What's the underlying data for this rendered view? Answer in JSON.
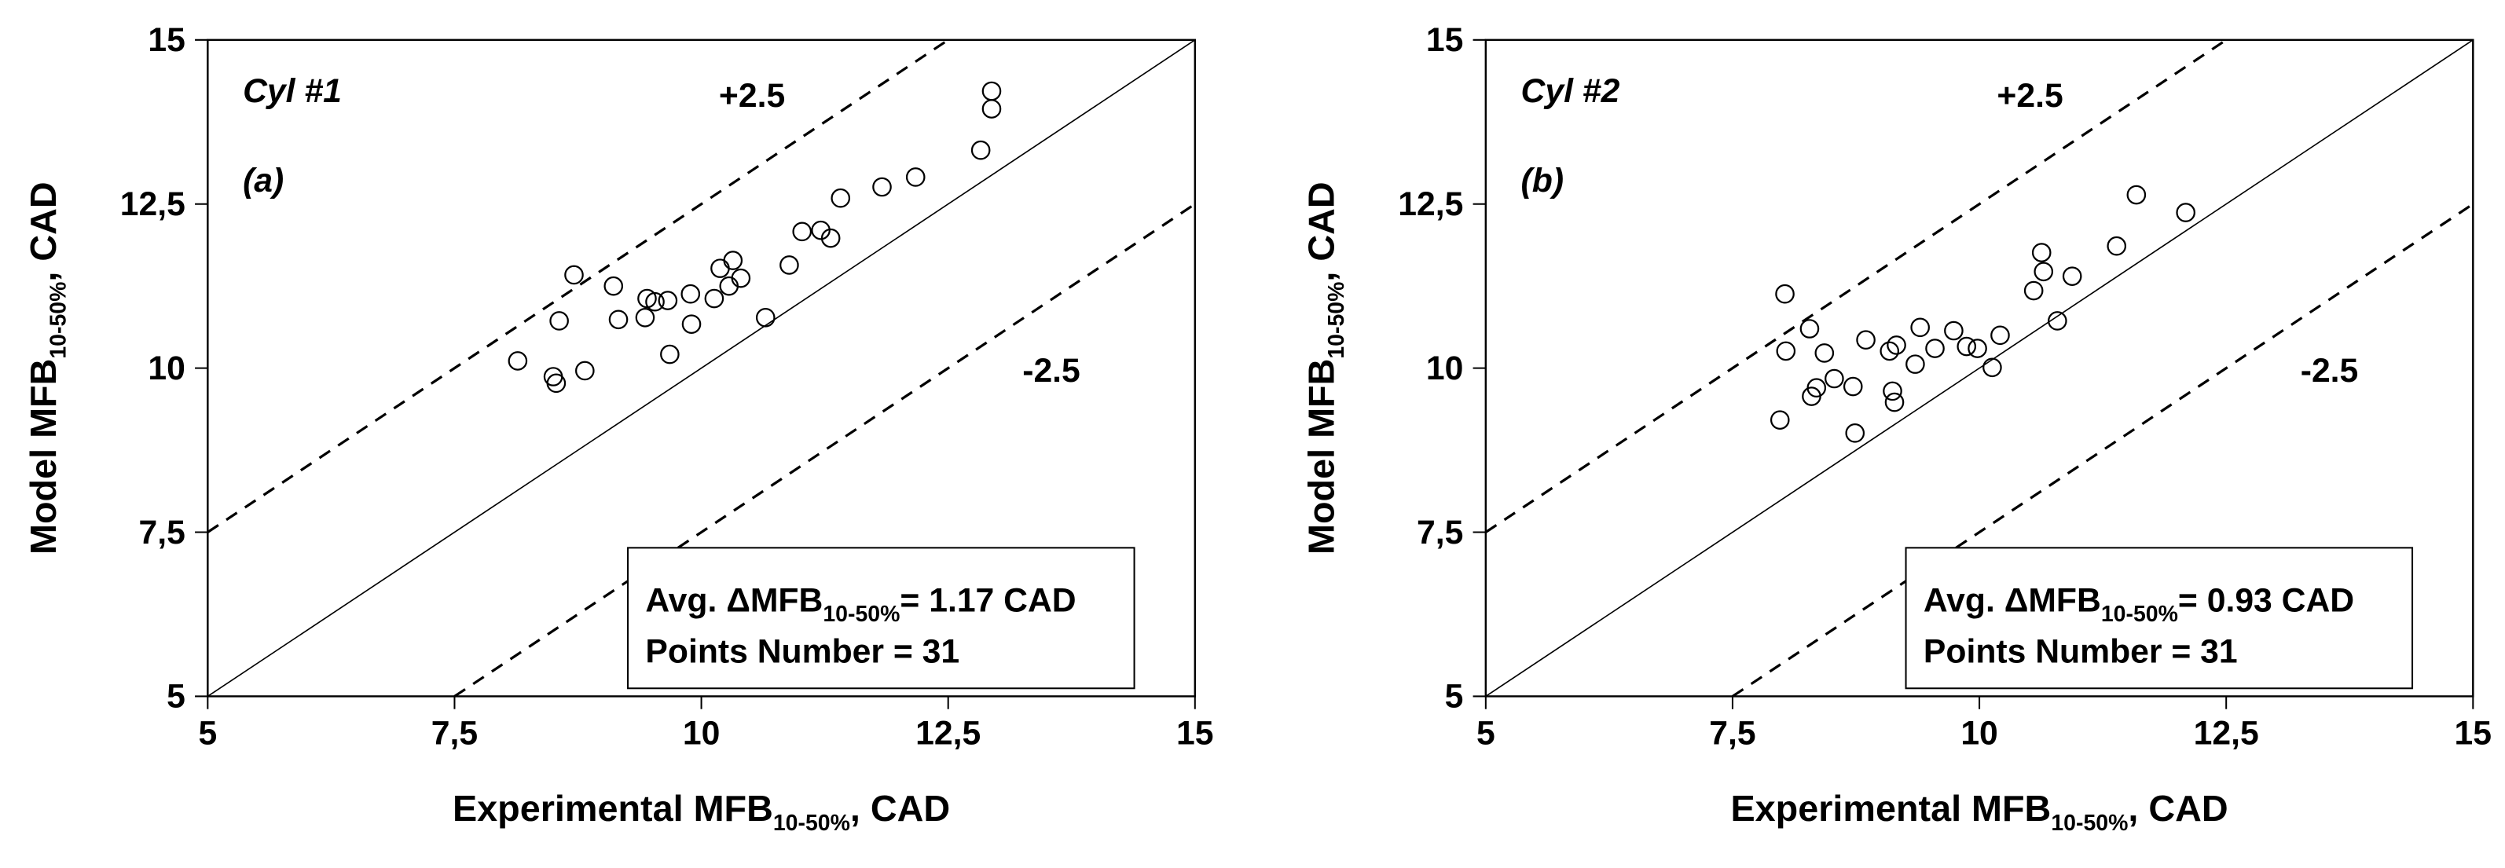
{
  "chart_data": [
    {
      "type": "scatter",
      "panel_name": "Cyl #1",
      "panel_letter": "(a)",
      "x_label": {
        "text": "Experimental MFB",
        "subscript": "10-50%",
        "suffix": ", CAD"
      },
      "y_label": {
        "text": "Model MFB",
        "subscript": "10-50%",
        "suffix": ", CAD"
      },
      "xlim": [
        5,
        15
      ],
      "ylim": [
        5,
        15
      ],
      "xticks": [
        5,
        {
          "value": 7.5,
          "label": "7,5"
        },
        10,
        {
          "value": 12.5,
          "label": "12,5"
        },
        15
      ],
      "yticks": [
        5,
        {
          "value": 7.5,
          "label": "7,5"
        },
        10,
        {
          "value": 12.5,
          "label": "12,5"
        },
        15
      ],
      "reference_lines": [
        {
          "offset": 0,
          "dashed": false
        },
        {
          "offset": 2.5,
          "label": "+2.5",
          "dashed": true
        },
        {
          "offset": -2.5,
          "label": "-2.5",
          "dashed": true
        }
      ],
      "stats": {
        "avg_prefix": "Avg. ΔMFB",
        "avg_subscript": "10-50%",
        "avg_suffix": "= 1.17 CAD",
        "points": "Points Number = 31"
      },
      "x": [
        8.14,
        8.5,
        8.53,
        8.56,
        8.71,
        8.82,
        9.11,
        9.16,
        9.45,
        9.43,
        9.53,
        9.66,
        9.68,
        9.89,
        9.9,
        10.13,
        10.19,
        10.32,
        10.28,
        10.4,
        10.65,
        10.89,
        11.02,
        11.21,
        11.31,
        11.41,
        11.83,
        12.17,
        12.83,
        12.94,
        12.94
      ],
      "values": [
        10.11,
        9.87,
        9.77,
        10.72,
        11.42,
        9.96,
        11.25,
        10.74,
        11.06,
        10.77,
        11.01,
        11.03,
        10.21,
        11.13,
        10.67,
        11.06,
        11.52,
        11.64,
        11.25,
        11.37,
        10.77,
        11.57,
        12.08,
        12.1,
        11.98,
        12.59,
        12.76,
        12.91,
        13.32,
        14.22,
        13.95
      ]
    },
    {
      "type": "scatter",
      "panel_name": "Cyl #2",
      "panel_letter": "(b)",
      "x_label": {
        "text": "Experimental MFB",
        "subscript": "10-50%",
        "suffix": ", CAD"
      },
      "y_label": {
        "text": "Model MFB",
        "subscript": "10-50%",
        "suffix": ", CAD"
      },
      "xlim": [
        5,
        15
      ],
      "ylim": [
        5,
        15
      ],
      "xticks": [
        5,
        {
          "value": 7.5,
          "label": "7,5"
        },
        10,
        {
          "value": 12.5,
          "label": "12,5"
        },
        15
      ],
      "yticks": [
        5,
        {
          "value": 7.5,
          "label": "7,5"
        },
        10,
        {
          "value": 12.5,
          "label": "12,5"
        },
        15
      ],
      "reference_lines": [
        {
          "offset": 0,
          "dashed": false
        },
        {
          "offset": 2.5,
          "label": "+2.5",
          "dashed": true
        },
        {
          "offset": -2.5,
          "label": "-2.5",
          "dashed": true
        }
      ],
      "stats": {
        "avg_prefix": "Avg. ΔMFB",
        "avg_subscript": "10-50%",
        "avg_suffix": "= 0.93 CAD",
        "points": "Points Number = 31"
      },
      "x": [
        8.03,
        8.04,
        7.98,
        8.28,
        8.3,
        8.35,
        8.43,
        8.53,
        8.72,
        8.74,
        8.85,
        9.09,
        9.12,
        9.14,
        9.16,
        9.35,
        9.4,
        9.55,
        9.74,
        9.87,
        9.98,
        10.13,
        10.21,
        10.55,
        10.63,
        10.65,
        10.79,
        10.94,
        11.39,
        11.59,
        12.09
      ],
      "values": [
        11.13,
        10.26,
        9.21,
        10.6,
        9.57,
        9.7,
        10.23,
        9.84,
        9.72,
        9.01,
        10.43,
        10.26,
        9.65,
        9.48,
        10.35,
        10.06,
        10.62,
        10.3,
        10.57,
        10.33,
        10.3,
        10.01,
        10.5,
        11.18,
        11.76,
        11.47,
        10.72,
        11.4,
        11.86,
        12.64,
        12.37
      ]
    }
  ]
}
